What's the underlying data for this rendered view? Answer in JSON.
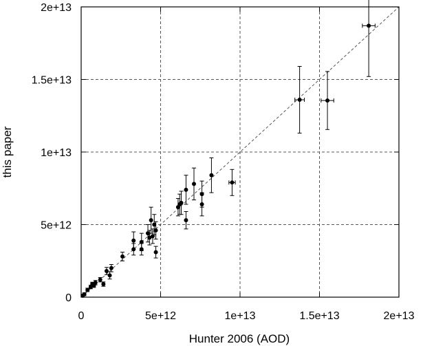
{
  "chart_data": {
    "type": "scatter",
    "title": "",
    "xlabel": "Hunter 2006 (AOD)",
    "ylabel": "this paper",
    "xlim": [
      0,
      20000000000000.0
    ],
    "ylim": [
      0,
      20000000000000.0
    ],
    "x_ticks": [
      0,
      5000000000000.0,
      10000000000000.0,
      15000000000000.0,
      20000000000000.0
    ],
    "x_tick_labels": [
      "0",
      "5e+12",
      "1e+13",
      "1.5e+13",
      "2e+13"
    ],
    "y_ticks": [
      0,
      5000000000000.0,
      10000000000000.0,
      15000000000000.0,
      20000000000000.0
    ],
    "y_tick_labels": [
      "0",
      "5e+12",
      "1e+13",
      "1.5e+13",
      "2e+13"
    ],
    "grid": "dashed at major ticks",
    "reference_line": {
      "style": "dashed",
      "description": "y = x",
      "from": [
        0,
        0
      ],
      "to": [
        20000000000000.0,
        20000000000000.0
      ]
    },
    "points": [
      {
        "x": 100000000000.0,
        "y": 100000000000.0,
        "yerr": 100000000000.0,
        "xerr": 0
      },
      {
        "x": 200000000000.0,
        "y": 200000000000.0,
        "yerr": 100000000000.0,
        "xerr": 0
      },
      {
        "x": 400000000000.0,
        "y": 500000000000.0,
        "yerr": 120000000000.0,
        "xerr": 0
      },
      {
        "x": 600000000000.0,
        "y": 700000000000.0,
        "yerr": 120000000000.0,
        "xerr": 0
      },
      {
        "x": 700000000000.0,
        "y": 900000000000.0,
        "yerr": 130000000000.0,
        "xerr": 0
      },
      {
        "x": 800000000000.0,
        "y": 800000000000.0,
        "yerr": 130000000000.0,
        "xerr": 0
      },
      {
        "x": 900000000000.0,
        "y": 1000000000000.0,
        "yerr": 150000000000.0,
        "xerr": 0
      },
      {
        "x": 1200000000000.0,
        "y": 1200000000000.0,
        "yerr": 150000000000.0,
        "xerr": 0
      },
      {
        "x": 1400000000000.0,
        "y": 900000000000.0,
        "yerr": 150000000000.0,
        "xerr": 0
      },
      {
        "x": 1600000000000.0,
        "y": 1800000000000.0,
        "yerr": 250000000000.0,
        "xerr": 0
      },
      {
        "x": 1800000000000.0,
        "y": 1500000000000.0,
        "yerr": 250000000000.0,
        "xerr": 0
      },
      {
        "x": 1900000000000.0,
        "y": 2000000000000.0,
        "yerr": 250000000000.0,
        "xerr": 0
      },
      {
        "x": 2600000000000.0,
        "y": 2800000000000.0,
        "yerr": 300000000000.0,
        "xerr": 0
      },
      {
        "x": 3300000000000.0,
        "y": 3300000000000.0,
        "yerr": 400000000000.0,
        "xerr": 0
      },
      {
        "x": 3300000000000.0,
        "y": 3900000000000.0,
        "yerr": 600000000000.0,
        "xerr": 0
      },
      {
        "x": 3800000000000.0,
        "y": 3800000000000.0,
        "yerr": 600000000000.0,
        "xerr": 0
      },
      {
        "x": 3800000000000.0,
        "y": 3300000000000.0,
        "yerr": 400000000000.0,
        "xerr": 0
      },
      {
        "x": 4200000000000.0,
        "y": 4400000000000.0,
        "yerr": 600000000000.0,
        "xerr": 0
      },
      {
        "x": 4300000000000.0,
        "y": 4100000000000.0,
        "yerr": 500000000000.0,
        "xerr": 0
      },
      {
        "x": 4400000000000.0,
        "y": 5300000000000.0,
        "yerr": 900000000000.0,
        "xerr": 0
      },
      {
        "x": 4500000000000.0,
        "y": 4200000000000.0,
        "yerr": 500000000000.0,
        "xerr": 0
      },
      {
        "x": 4600000000000.0,
        "y": 5000000000000.0,
        "yerr": 700000000000.0,
        "xerr": 0
      },
      {
        "x": 4700000000000.0,
        "y": 4600000000000.0,
        "yerr": 600000000000.0,
        "xerr": 0
      },
      {
        "x": 4700000000000.0,
        "y": 3100000000000.0,
        "yerr": 400000000000.0,
        "xerr": 0
      },
      {
        "x": 6100000000000.0,
        "y": 6200000000000.0,
        "yerr": 600000000000.0,
        "xerr": 0
      },
      {
        "x": 6200000000000.0,
        "y": 6400000000000.0,
        "yerr": 700000000000.0,
        "xerr": 0
      },
      {
        "x": 6300000000000.0,
        "y": 6500000000000.0,
        "yerr": 800000000000.0,
        "xerr": 0
      },
      {
        "x": 6600000000000.0,
        "y": 7400000000000.0,
        "yerr": 1000000000000.0,
        "xerr": 0
      },
      {
        "x": 6600000000000.0,
        "y": 5300000000000.0,
        "yerr": 600000000000.0,
        "xerr": 0
      },
      {
        "x": 7100000000000.0,
        "y": 7800000000000.0,
        "yerr": 1100000000000.0,
        "xerr": 0
      },
      {
        "x": 7600000000000.0,
        "y": 7100000000000.0,
        "yerr": 900000000000.0,
        "xerr": 0
      },
      {
        "x": 7600000000000.0,
        "y": 6400000000000.0,
        "yerr": 800000000000.0,
        "xerr": 0
      },
      {
        "x": 8200000000000.0,
        "y": 8400000000000.0,
        "yerr": 1200000000000.0,
        "xerr": 0
      },
      {
        "x": 9500000000000.0,
        "y": 7900000000000.0,
        "yerr": 900000000000.0,
        "xerr": 200000000000.0
      },
      {
        "x": 13750000000000.0,
        "y": 13600000000000.0,
        "yerr": 2300000000000.0,
        "xerr": 300000000000.0
      },
      {
        "x": 15500000000000.0,
        "y": 13550000000000.0,
        "yerr": 2000000000000.0,
        "xerr": 400000000000.0
      },
      {
        "x": 18100000000000.0,
        "y": 18700000000000.0,
        "yerr": 3500000000000.0,
        "xerr": 400000000000.0
      }
    ],
    "colors": {
      "axis": "#000000",
      "grid": "#555555",
      "marker": "#000000"
    }
  }
}
